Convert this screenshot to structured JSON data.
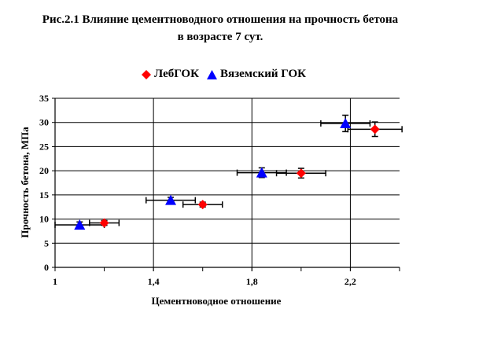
{
  "title_line1": "Рис.2.1 Влияние цементноводного отношения на прочность бетона",
  "title_line2": "в возрасте 7 сут.",
  "chart_data": {
    "type": "scatter",
    "xlabel": "Цементноводное отношение",
    "ylabel": "Прочность бетона, МПа",
    "xlim": [
      1,
      2.4
    ],
    "ylim": [
      0,
      35
    ],
    "xticks": [
      1,
      1.4,
      1.8,
      2.2
    ],
    "xtick_labels": [
      "1",
      "1,4",
      "1,8",
      "2,2"
    ],
    "yticks": [
      0,
      5,
      10,
      15,
      20,
      25,
      30,
      35
    ],
    "grid": true,
    "legend_position": "top",
    "series": [
      {
        "name": "ЛебГОК",
        "marker": "diamond",
        "color": "#ff0000",
        "points": [
          {
            "x": 1.2,
            "y": 9.2,
            "xerr": 0.06,
            "yerr": 0.5
          },
          {
            "x": 1.6,
            "y": 13.0,
            "xerr": 0.08,
            "yerr": 0.5
          },
          {
            "x": 2.0,
            "y": 19.5,
            "xerr": 0.1,
            "yerr": 1.0
          },
          {
            "x": 2.3,
            "y": 28.6,
            "xerr": 0.11,
            "yerr": 1.5
          }
        ]
      },
      {
        "name": "Вяземский ГОК",
        "marker": "triangle",
        "color": "#0000ff",
        "points": [
          {
            "x": 1.1,
            "y": 8.8,
            "xerr": 0.1,
            "yerr": 0.6
          },
          {
            "x": 1.47,
            "y": 13.9,
            "xerr": 0.1,
            "yerr": 0.6
          },
          {
            "x": 1.84,
            "y": 19.6,
            "xerr": 0.1,
            "yerr": 1.0
          },
          {
            "x": 2.18,
            "y": 29.8,
            "xerr": 0.1,
            "yerr": 1.7
          }
        ]
      }
    ]
  }
}
